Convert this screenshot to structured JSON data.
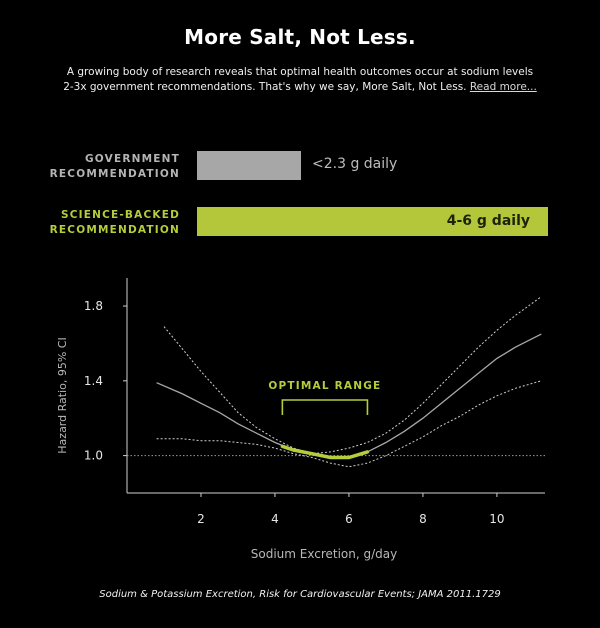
{
  "header": {
    "title": "More Salt, Not Less.",
    "intro_text": "A growing body of research reveals that optimal health outcomes occur at sodium levels 2-3x government recommendations. That's why we say, More Salt, Not Less.",
    "read_more_link": "Read more..."
  },
  "recommendations": {
    "government": {
      "label_line1": "GOVERNMENT",
      "label_line2": "RECOMMENDATION",
      "value": "<2.3 g daily",
      "color": "#a7a7a7"
    },
    "science": {
      "label_line1": "SCIENCE-BACKED",
      "label_line2": "RECOMMENDATION",
      "value": "4-6 g daily",
      "color": "#b4c73a"
    }
  },
  "chart_data": {
    "type": "line",
    "xlabel": "Sodium Excretion, g/day",
    "ylabel": "Hazard Ratio, 95% CI",
    "xlim": [
      0,
      11.3
    ],
    "ylim": [
      0.8,
      1.95
    ],
    "x_ticks": [
      2,
      4,
      6,
      8,
      10
    ],
    "y_ticks": [
      1.0,
      1.4,
      1.8
    ],
    "y_tick_labels": [
      "1.0",
      "1.4",
      "1.8"
    ],
    "reference_line": 1.0,
    "grid": false,
    "annotation": {
      "label": "OPTIMAL RANGE",
      "x_start": 4.2,
      "x_end": 6.5,
      "color": "#b6cc3c"
    },
    "series": [
      {
        "role": "estimate",
        "color": "#a8a8a8",
        "x": [
          0.8,
          1.5,
          2.0,
          2.5,
          3.0,
          3.5,
          4.0,
          4.5,
          5.0,
          5.5,
          6.0,
          6.5,
          7.0,
          7.5,
          8.0,
          8.5,
          9.0,
          9.5,
          10.0,
          10.5,
          11.2
        ],
        "y": [
          1.39,
          1.33,
          1.28,
          1.23,
          1.17,
          1.12,
          1.07,
          1.03,
          1.01,
          0.99,
          0.99,
          1.02,
          1.07,
          1.13,
          1.2,
          1.28,
          1.36,
          1.44,
          1.52,
          1.58,
          1.65
        ]
      },
      {
        "role": "upper-ci",
        "color": "#cfcfcf",
        "x": [
          1.0,
          1.5,
          2.0,
          2.5,
          3.0,
          3.5,
          4.0,
          4.5,
          5.0,
          5.5,
          6.0,
          6.5,
          7.0,
          7.5,
          8.0,
          8.5,
          9.0,
          9.5,
          10.0,
          10.5,
          11.2
        ],
        "y": [
          1.69,
          1.57,
          1.45,
          1.34,
          1.23,
          1.15,
          1.09,
          1.04,
          1.01,
          1.02,
          1.04,
          1.07,
          1.12,
          1.19,
          1.28,
          1.38,
          1.48,
          1.58,
          1.67,
          1.75,
          1.85
        ]
      },
      {
        "role": "lower-ci",
        "color": "#cfcfcf",
        "x": [
          0.8,
          1.5,
          2.0,
          2.5,
          3.0,
          3.5,
          4.0,
          4.5,
          5.0,
          5.5,
          6.0,
          6.5,
          7.0,
          7.5,
          8.0,
          8.5,
          9.0,
          9.5,
          10.0,
          10.5,
          11.2
        ],
        "y": [
          1.09,
          1.09,
          1.08,
          1.08,
          1.07,
          1.06,
          1.04,
          1.01,
          0.99,
          0.96,
          0.94,
          0.96,
          1.0,
          1.05,
          1.1,
          1.16,
          1.21,
          1.27,
          1.32,
          1.36,
          1.4
        ]
      }
    ],
    "optimal_highlight": {
      "color": "#b6cc3c",
      "x": [
        4.2,
        4.5,
        5.0,
        5.5,
        6.0,
        6.5
      ],
      "y": [
        1.05,
        1.03,
        1.01,
        0.99,
        0.99,
        1.02
      ]
    }
  },
  "footer": {
    "caption": "Sodium & Potassium Excretion, Risk for Cardiovascular Events; JAMA 2011.1729"
  }
}
